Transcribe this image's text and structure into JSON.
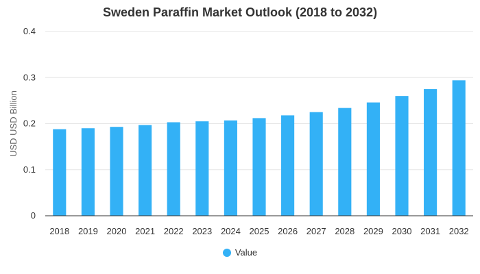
{
  "chart_data": {
    "type": "bar",
    "title": "Sweden Paraffin Market Outlook (2018 to 2032)",
    "xlabel": "",
    "ylabel": "USD USD Billion",
    "categories": [
      "2018",
      "2019",
      "2020",
      "2021",
      "2022",
      "2023",
      "2024",
      "2025",
      "2026",
      "2027",
      "2028",
      "2029",
      "2030",
      "2031",
      "2032"
    ],
    "series": [
      {
        "name": "Value",
        "values": [
          0.188,
          0.19,
          0.193,
          0.197,
          0.203,
          0.205,
          0.207,
          0.212,
          0.218,
          0.225,
          0.234,
          0.246,
          0.26,
          0.275,
          0.294
        ]
      }
    ],
    "ylim": [
      0,
      0.4
    ],
    "yticks": [
      "0",
      "0.1",
      "0.2",
      "0.3",
      "0.4"
    ],
    "grid": true,
    "legend_position": "bottom",
    "colors": {
      "bar": "#33b1f6",
      "grid": "#e6e6e6",
      "axis": "#333333"
    }
  }
}
